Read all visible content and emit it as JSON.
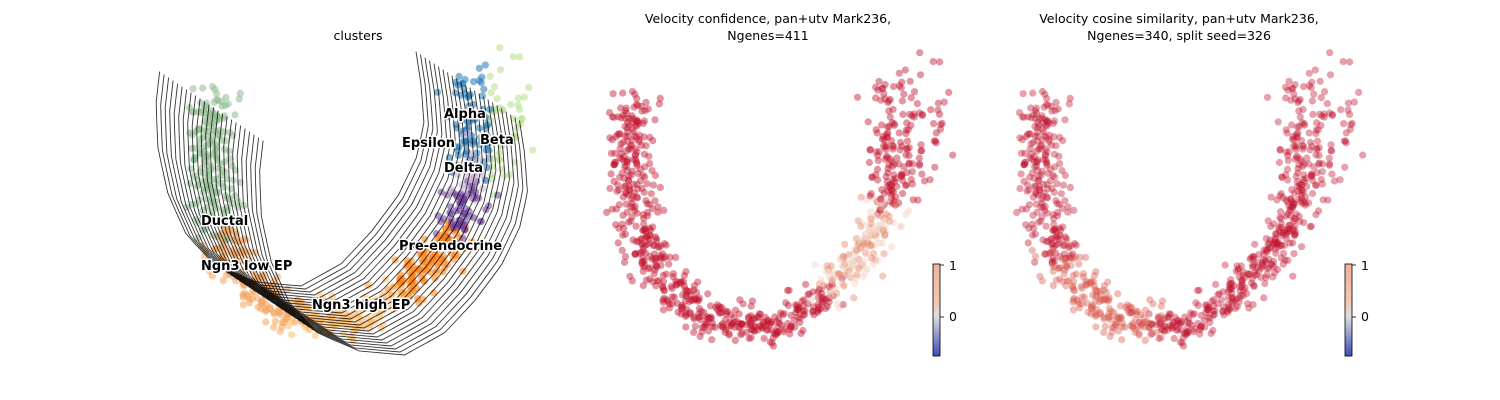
{
  "chart_data": [
    {
      "type": "scatter",
      "title": "clusters",
      "legend": "on-data",
      "clusters": [
        {
          "name": "Ductal",
          "color": "#8fbc8f"
        },
        {
          "name": "Ngn3 low EP",
          "color": "#f4a460"
        },
        {
          "name": "Ngn3 high EP",
          "color": "#fdbf6f"
        },
        {
          "name": "Pre-endocrine",
          "color": "#ff7f0e"
        },
        {
          "name": "Alpha",
          "color": "#1f77b4"
        },
        {
          "name": "Beta",
          "color": "#b2df8a"
        },
        {
          "name": "Epsilon",
          "color": "#cab2d6"
        },
        {
          "name": "Delta",
          "color": "#6a3d9a"
        }
      ],
      "overlay": "velocity-streamlines",
      "axes": "off"
    },
    {
      "type": "scatter",
      "title": "Velocity confidence, pan+utv Mark236,\nNgenes=411",
      "colormap": "coolwarm",
      "colorbar": {
        "ticks": [
          "1",
          "0"
        ],
        "range": [
          -0.75,
          1
        ]
      },
      "axes": "off"
    },
    {
      "type": "scatter",
      "title": "Velocity cosine similarity, pan+utv Mark236,\nNgenes=340, split seed=326",
      "colormap": "coolwarm",
      "colorbar": {
        "ticks": [
          "1",
          "0"
        ],
        "range": [
          -0.75,
          1
        ]
      },
      "axes": "off"
    }
  ]
}
